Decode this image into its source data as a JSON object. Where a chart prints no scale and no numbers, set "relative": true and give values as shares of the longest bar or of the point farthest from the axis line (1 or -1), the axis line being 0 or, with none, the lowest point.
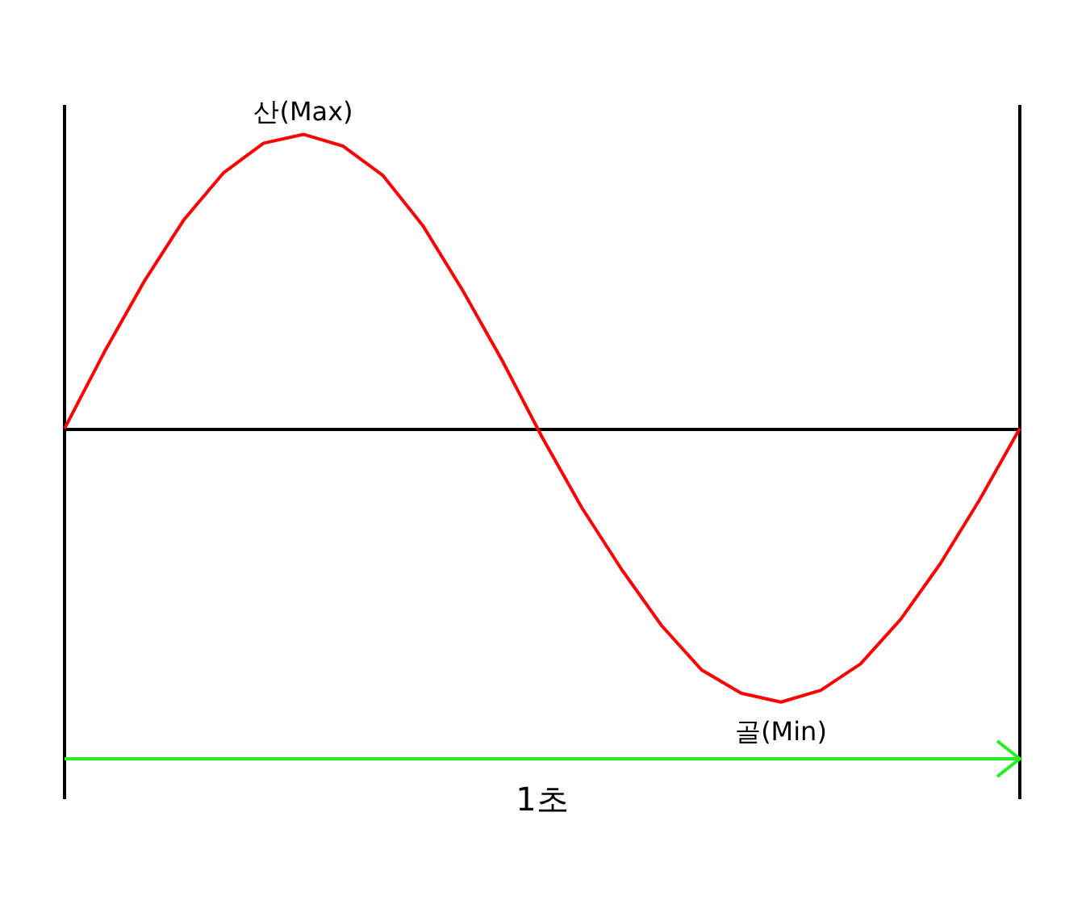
{
  "chart_data": {
    "type": "line",
    "relative": true,
    "marker": "none",
    "categories": [
      null,
      null,
      null,
      null,
      null,
      null,
      null,
      null,
      null,
      null,
      null,
      null,
      null,
      null,
      null,
      null,
      null,
      null,
      null,
      null,
      null,
      null,
      null,
      null,
      null
    ],
    "series": [
      {
        "color": "#ff0000",
        "values": [
          0,
          0.26,
          0.5,
          0.71,
          0.87,
          0.97,
          1,
          0.96,
          0.86,
          0.69,
          0.47,
          0.23,
          -0.03,
          -0.27,
          -0.48,
          -0.67,
          -0.82,
          -0.9,
          -0.93,
          -0.89,
          -0.8,
          -0.65,
          -0.46,
          -0.24,
          0
        ]
      }
    ],
    "annotations": [
      {
        "text": "산(Max)",
        "y": 1
      },
      {
        "text": "골(Min)",
        "y": -0.93
      },
      "1초"
    ]
  }
}
